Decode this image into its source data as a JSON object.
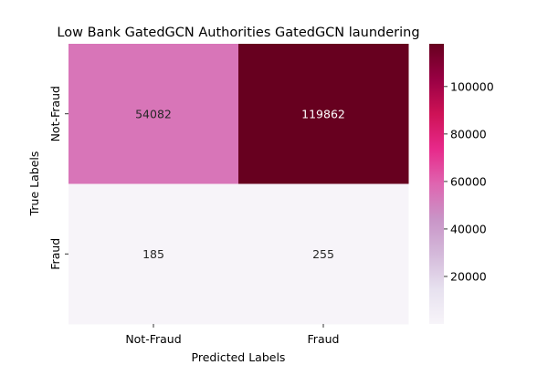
{
  "chart_data": {
    "type": "heatmap",
    "title": "Low Bank GatedGCN Authorities GatedGCN laundering",
    "xlabel": "Predicted Labels",
    "ylabel": "True Labels",
    "x_categories": [
      "Not-Fraud",
      "Fraud"
    ],
    "y_categories": [
      "Not-Fraud",
      "Fraud"
    ],
    "values": [
      [
        54082,
        119862
      ],
      [
        185,
        255
      ]
    ],
    "color_range": [
      0,
      118000
    ],
    "colorbar_ticks": [
      20000,
      40000,
      60000,
      80000,
      100000
    ],
    "colorbar_tick_labels": [
      "20000",
      "40000",
      "60000",
      "80000",
      "100000"
    ],
    "colormap": "PuRd",
    "colors": {
      "low": "#f7f4f9",
      "mid": "#df65b0",
      "high": "#67001f"
    }
  }
}
